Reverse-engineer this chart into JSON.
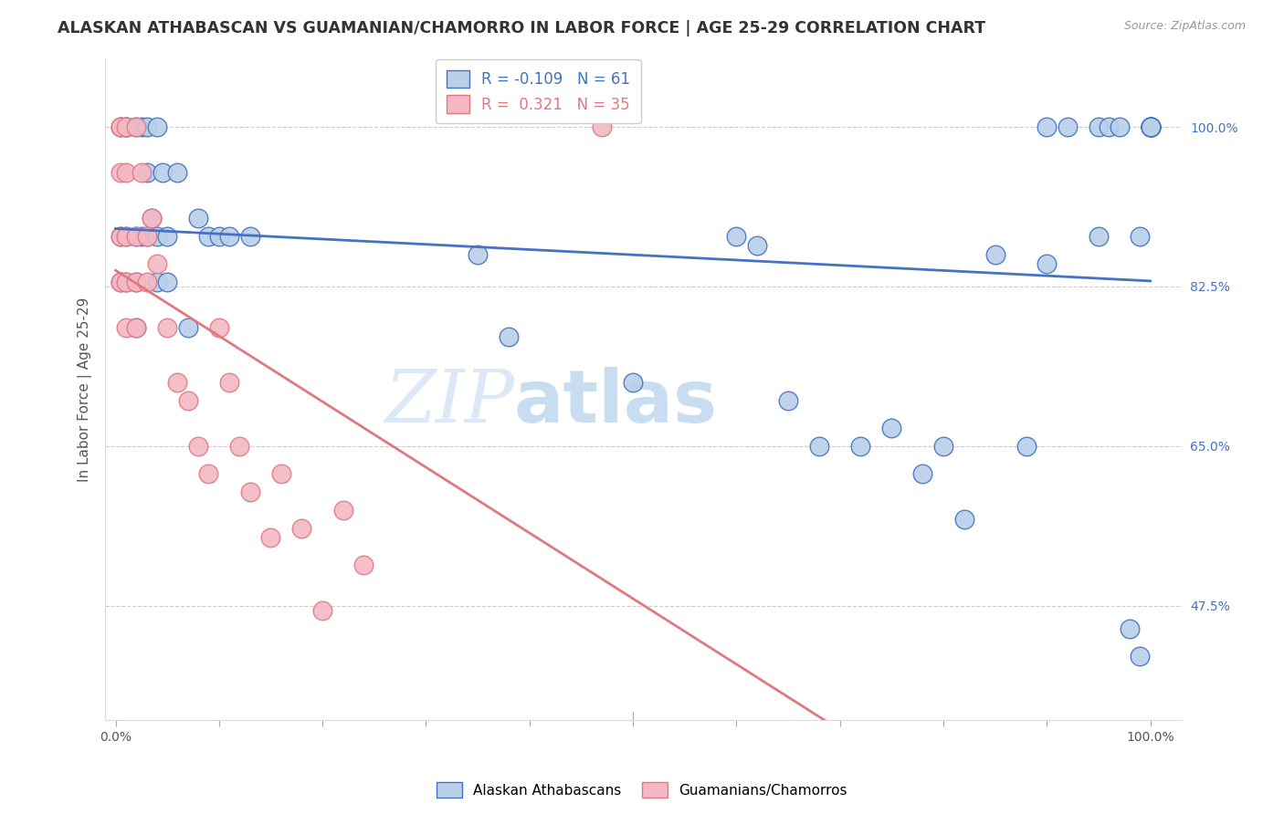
{
  "title": "ALASKAN ATHABASCAN VS GUAMANIAN/CHAMORRO IN LABOR FORCE | AGE 25-29 CORRELATION CHART",
  "source": "Source: ZipAtlas.com",
  "ylabel": "In Labor Force | Age 25-29",
  "blue_R": -0.109,
  "blue_N": 61,
  "pink_R": 0.321,
  "pink_N": 35,
  "blue_color": "#b8d0e8",
  "pink_color": "#f4b8c4",
  "blue_edge_color": "#4472C4",
  "pink_edge_color": "#e07880",
  "blue_line_color": "#4472C4",
  "pink_line_color": "#e07880",
  "watermark_color": "#dce8f5",
  "blue_points_x": [
    0.005,
    0.005,
    0.005,
    0.01,
    0.01,
    0.01,
    0.01,
    0.02,
    0.02,
    0.02,
    0.02,
    0.025,
    0.025,
    0.03,
    0.03,
    0.03,
    0.035,
    0.04,
    0.04,
    0.04,
    0.045,
    0.05,
    0.05,
    0.06,
    0.07,
    0.08,
    0.09,
    0.1,
    0.11,
    0.13,
    0.35,
    0.38,
    0.5,
    0.6,
    0.62,
    0.65,
    0.68,
    0.72,
    0.75,
    0.78,
    0.8,
    0.82,
    0.85,
    0.88,
    0.9,
    0.9,
    0.92,
    0.95,
    0.95,
    0.96,
    0.97,
    0.98,
    0.99,
    0.99,
    1.0,
    1.0,
    1.0,
    1.0,
    1.0,
    1.0,
    1.0
  ],
  "blue_points_y": [
    1.0,
    0.88,
    0.83,
    1.0,
    1.0,
    0.88,
    0.83,
    1.0,
    0.88,
    0.83,
    0.78,
    1.0,
    0.88,
    1.0,
    0.95,
    0.88,
    0.9,
    1.0,
    0.88,
    0.83,
    0.95,
    0.88,
    0.83,
    0.95,
    0.78,
    0.9,
    0.88,
    0.88,
    0.88,
    0.88,
    0.86,
    0.77,
    0.72,
    0.88,
    0.87,
    0.7,
    0.65,
    0.65,
    0.67,
    0.62,
    0.65,
    0.57,
    0.86,
    0.65,
    0.85,
    1.0,
    1.0,
    1.0,
    0.88,
    1.0,
    1.0,
    0.45,
    0.88,
    0.42,
    1.0,
    1.0,
    1.0,
    1.0,
    1.0,
    1.0,
    1.0
  ],
  "pink_points_x": [
    0.005,
    0.005,
    0.005,
    0.005,
    0.005,
    0.01,
    0.01,
    0.01,
    0.01,
    0.01,
    0.02,
    0.02,
    0.02,
    0.02,
    0.025,
    0.03,
    0.03,
    0.035,
    0.04,
    0.05,
    0.06,
    0.07,
    0.08,
    0.09,
    0.1,
    0.11,
    0.12,
    0.13,
    0.15,
    0.16,
    0.18,
    0.2,
    0.22,
    0.24,
    0.47
  ],
  "pink_points_y": [
    1.0,
    1.0,
    0.95,
    0.88,
    0.83,
    1.0,
    0.95,
    0.88,
    0.83,
    0.78,
    1.0,
    0.88,
    0.83,
    0.78,
    0.95,
    0.88,
    0.83,
    0.9,
    0.85,
    0.78,
    0.72,
    0.7,
    0.65,
    0.62,
    0.78,
    0.72,
    0.65,
    0.6,
    0.55,
    0.62,
    0.56,
    0.47,
    0.58,
    0.52,
    1.0
  ]
}
